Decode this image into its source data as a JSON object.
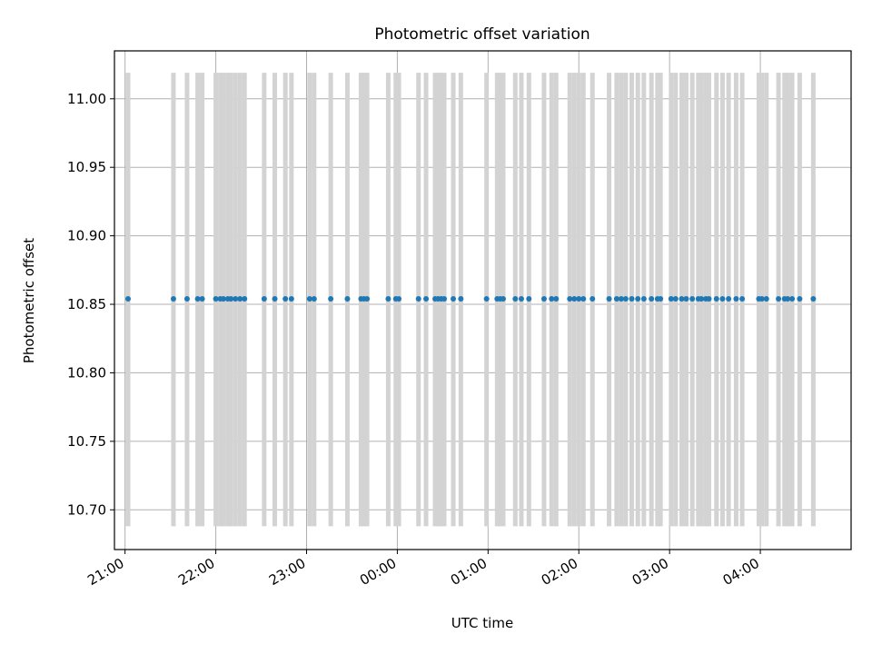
{
  "chart_data": {
    "type": "scatter",
    "title": "Photometric offset variation",
    "xlabel": "UTC time",
    "ylabel": "Photometric offset",
    "x_tick_labels": [
      "21:00",
      "22:00",
      "23:00",
      "00:00",
      "01:00",
      "02:00",
      "03:00",
      "04:00"
    ],
    "y_tick_labels": [
      "10.70",
      "10.75",
      "10.80",
      "10.85",
      "10.90",
      "10.95",
      "11.00"
    ],
    "xlim": [
      "20:53",
      "05:00"
    ],
    "ylim": [
      10.671,
      11.035
    ],
    "grid": true,
    "error_bar": {
      "low": 10.688,
      "high": 11.019
    },
    "times": [
      "21:02",
      "21:32",
      "21:41",
      "21:48",
      "21:51",
      "22:00",
      "22:03",
      "22:05",
      "22:08",
      "22:10",
      "22:13",
      "22:16",
      "22:19",
      "22:32",
      "22:39",
      "22:46",
      "22:50",
      "23:02",
      "23:05",
      "23:16",
      "23:27",
      "23:36",
      "23:38",
      "23:40",
      "23:54",
      "23:59",
      "24:01",
      "24:14",
      "24:19",
      "24:25",
      "24:27",
      "24:29",
      "24:31",
      "24:37",
      "24:42",
      "24:59",
      "25:06",
      "25:08",
      "25:10",
      "25:18",
      "25:22",
      "25:27",
      "25:37",
      "25:42",
      "25:45",
      "25:54",
      "25:57",
      "26:00",
      "26:03",
      "26:09",
      "26:20",
      "26:25",
      "26:28",
      "26:31",
      "26:35",
      "26:39",
      "26:43",
      "26:48",
      "26:52",
      "26:54",
      "27:01",
      "27:04",
      "27:08",
      "27:11",
      "27:15",
      "27:19",
      "27:21",
      "27:24",
      "27:26",
      "27:31",
      "27:35",
      "27:39",
      "27:44",
      "27:48",
      "27:59",
      "28:01",
      "28:04",
      "28:12",
      "28:16",
      "28:18",
      "28:21",
      "28:26",
      "28:35"
    ],
    "values": [
      10.854,
      10.854,
      10.854,
      10.854,
      10.854,
      10.854,
      10.854,
      10.854,
      10.854,
      10.854,
      10.854,
      10.854,
      10.854,
      10.854,
      10.854,
      10.854,
      10.854,
      10.854,
      10.854,
      10.854,
      10.854,
      10.854,
      10.854,
      10.854,
      10.854,
      10.854,
      10.854,
      10.854,
      10.854,
      10.854,
      10.854,
      10.854,
      10.854,
      10.854,
      10.854,
      10.854,
      10.854,
      10.854,
      10.854,
      10.854,
      10.854,
      10.854,
      10.854,
      10.854,
      10.854,
      10.854,
      10.854,
      10.854,
      10.854,
      10.854,
      10.854,
      10.854,
      10.854,
      10.854,
      10.854,
      10.854,
      10.854,
      10.854,
      10.854,
      10.854,
      10.854,
      10.854,
      10.854,
      10.854,
      10.854,
      10.854,
      10.854,
      10.854,
      10.854,
      10.854,
      10.854,
      10.854,
      10.854,
      10.854,
      10.854,
      10.854,
      10.854,
      10.854,
      10.854,
      10.854,
      10.854,
      10.854,
      10.854
    ],
    "colors": {
      "points": "#1f77b4",
      "error_bars": "#d3d3d3",
      "grid": "#b0b0b0",
      "axes": "#000000"
    }
  }
}
